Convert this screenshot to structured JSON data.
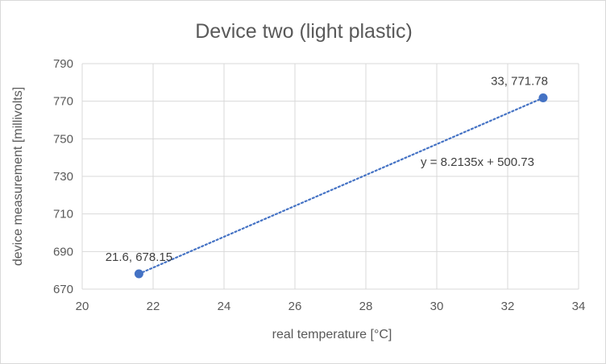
{
  "chart_data": {
    "type": "scatter",
    "title": "Device two (light plastic)",
    "xlabel": "real temperature [°C]",
    "ylabel": "device measurement [millivolts]",
    "xlim": [
      20,
      34
    ],
    "ylim": [
      670,
      790
    ],
    "x_ticks": [
      20,
      22,
      24,
      26,
      28,
      30,
      32,
      34
    ],
    "y_ticks": [
      670,
      690,
      710,
      730,
      750,
      770,
      790
    ],
    "grid": true,
    "legend": "none",
    "series": [
      {
        "color": "#4472c4",
        "points": [
          {
            "x": 21.6,
            "y": 678.15,
            "label": "21.6, 678.15"
          },
          {
            "x": 33,
            "y": 771.78,
            "label": "33, 771.78"
          }
        ]
      }
    ],
    "trendline": {
      "type": "linear",
      "slope": 8.2135,
      "intercept": 500.73,
      "x_range": [
        21.6,
        33
      ],
      "style": "dotted",
      "color": "#4472c4",
      "label": "y = 8.2135x + 500.73"
    }
  }
}
